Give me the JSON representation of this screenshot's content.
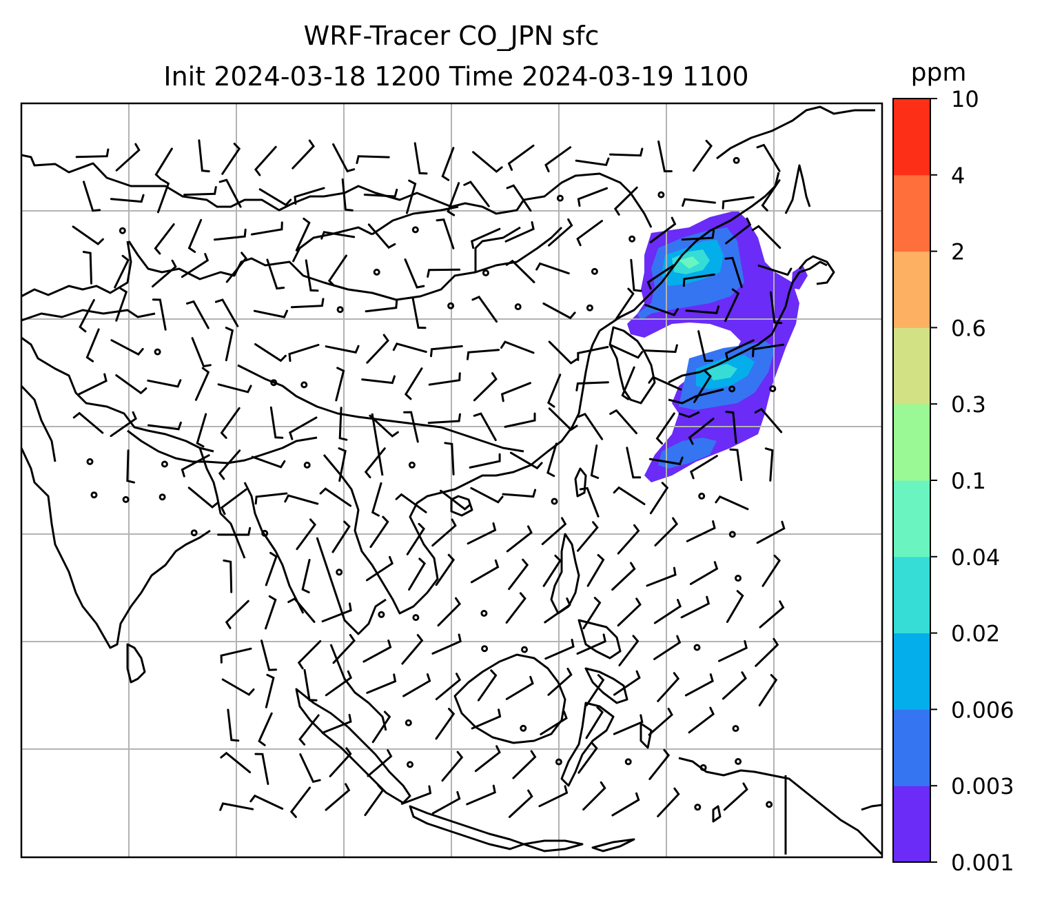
{
  "title": {
    "line1": "WRF-Tracer CO_JPN sfc",
    "line2": "Init 2024-03-18 1200 Time 2024-03-19 1100"
  },
  "colorbar": {
    "unit": "ppm",
    "ticks": [
      "0.001",
      "0.003",
      "0.006",
      "0.02",
      "0.04",
      "0.1",
      "0.3",
      "0.6",
      "2",
      "4",
      "10"
    ],
    "colors": [
      "#6a2cf6",
      "#3575f2",
      "#04aeea",
      "#35ddd6",
      "#6af5c0",
      "#9af895",
      "#d1e184",
      "#fdaf62",
      "#fe6f3c",
      "#fd2f17"
    ]
  },
  "map": {
    "gridlines": true,
    "line_color": "#000000",
    "grid_color": "#b3b3b3"
  }
}
